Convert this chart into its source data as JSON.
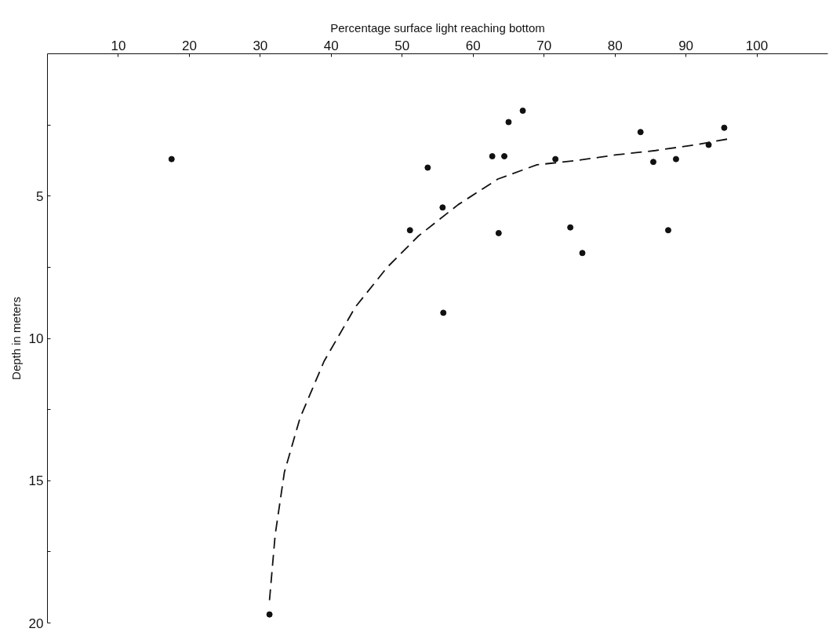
{
  "chart_data": {
    "type": "scatter",
    "xlabel": "Percentage surface light reaching bottom",
    "ylabel": "Depth in meters",
    "xlim": [
      0,
      110
    ],
    "ylim": [
      20,
      0
    ],
    "xticks": [
      10,
      20,
      30,
      40,
      50,
      60,
      70,
      80,
      90,
      100
    ],
    "yticks": [
      {
        "value": 2.5,
        "label": null
      },
      5,
      {
        "value": 7.5,
        "label": null
      },
      10,
      {
        "value": 12.5,
        "label": null
      },
      15,
      {
        "value": 17.5,
        "label": null
      },
      20
    ],
    "grid": false,
    "marker": "circle",
    "series": [
      {
        "color": "#111111",
        "x": [
          17.5,
          51.1,
          53.6,
          55.7,
          55.8,
          62.7,
          63.6,
          64.4,
          65.0,
          67.0,
          71.6,
          73.7,
          75.4,
          83.6,
          85.4,
          87.5,
          88.6,
          93.2,
          95.4,
          31.3
        ],
        "values": [
          3.7,
          6.2,
          4.0,
          5.4,
          9.1,
          3.6,
          6.3,
          3.6,
          2.4,
          2.0,
          3.7,
          6.1,
          7.0,
          2.75,
          3.8,
          6.2,
          3.7,
          3.2,
          2.6,
          19.7
        ]
      },
      {
        "type": "line",
        "color": "#111111",
        "line_style": "dashed",
        "marker": "none",
        "x": [
          31.3,
          32.1,
          33.4,
          35.6,
          39.0,
          43.4,
          47.9,
          52.3,
          57.9,
          63.5,
          69.0,
          74.6,
          80.2,
          85.7,
          91.3,
          95.8
        ],
        "values": [
          19.2,
          16.9,
          14.7,
          12.8,
          10.8,
          8.9,
          7.5,
          6.4,
          5.3,
          4.4,
          3.9,
          3.75,
          3.55,
          3.4,
          3.2,
          3.0
        ]
      }
    ]
  }
}
